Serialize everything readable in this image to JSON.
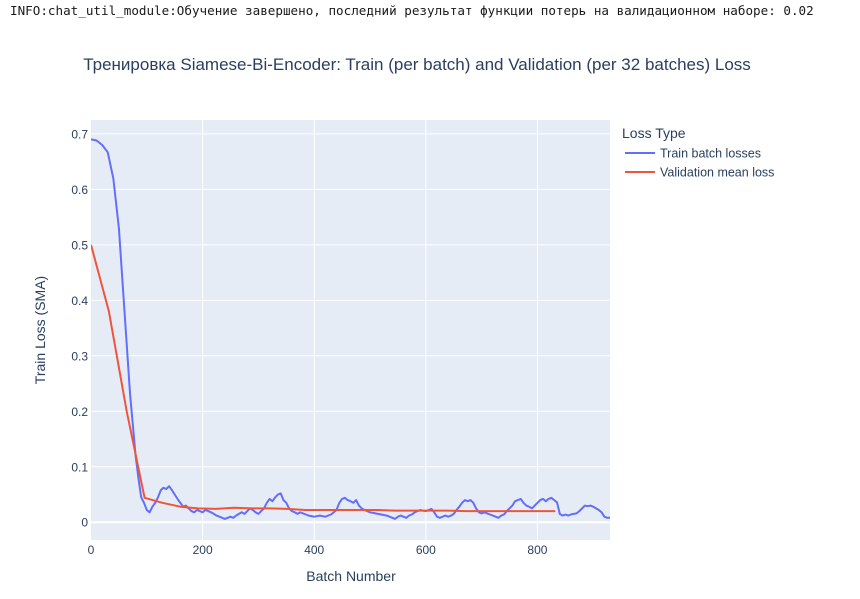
{
  "log_line": "INFO:chat_util_module:Обучение завершено, последний результат функции потерь на валидационном наборе: 0.02",
  "colors": {
    "plot_bg": "#E5ECF6",
    "grid": "#ffffff",
    "text": "#2a3f5f",
    "train": "#636EFA",
    "validation": "#EF553B"
  },
  "chart_data": {
    "type": "line",
    "title": "Тренировка Siamese-Bi-Encoder: Train (per batch) and Validation (per 32 batches) Loss",
    "xlabel": "Batch Number",
    "ylabel": "Train Loss (SMA)",
    "xlim": [
      0,
      930
    ],
    "ylim": [
      -0.032,
      0.725
    ],
    "xticks": [
      0,
      200,
      400,
      600,
      800
    ],
    "xtick_labels": [
      "0",
      "200",
      "400",
      "600",
      "800"
    ],
    "yticks": [
      0,
      0.1,
      0.2,
      0.3,
      0.4,
      0.5,
      0.6,
      0.7
    ],
    "ytick_labels": [
      "0",
      "0.1",
      "0.2",
      "0.3",
      "0.4",
      "0.5",
      "0.6",
      "0.7"
    ],
    "grid": true,
    "legend": {
      "title": "Loss Type",
      "position": "right"
    },
    "series": [
      {
        "name": "Train batch losses",
        "color": "#636EFA",
        "points": [
          [
            0,
            0.69
          ],
          [
            10,
            0.688
          ],
          [
            20,
            0.68
          ],
          [
            30,
            0.667
          ],
          [
            40,
            0.62
          ],
          [
            50,
            0.53
          ],
          [
            60,
            0.38
          ],
          [
            70,
            0.23
          ],
          [
            80,
            0.12
          ],
          [
            85,
            0.08
          ],
          [
            90,
            0.045
          ],
          [
            95,
            0.035
          ],
          [
            100,
            0.022
          ],
          [
            105,
            0.018
          ],
          [
            110,
            0.028
          ],
          [
            115,
            0.035
          ],
          [
            120,
            0.045
          ],
          [
            125,
            0.058
          ],
          [
            130,
            0.062
          ],
          [
            135,
            0.06
          ],
          [
            140,
            0.065
          ],
          [
            145,
            0.058
          ],
          [
            150,
            0.05
          ],
          [
            155,
            0.042
          ],
          [
            160,
            0.035
          ],
          [
            165,
            0.028
          ],
          [
            170,
            0.03
          ],
          [
            175,
            0.025
          ],
          [
            180,
            0.02
          ],
          [
            185,
            0.018
          ],
          [
            190,
            0.022
          ],
          [
            195,
            0.02
          ],
          [
            200,
            0.018
          ],
          [
            205,
            0.022
          ],
          [
            210,
            0.02
          ],
          [
            215,
            0.018
          ],
          [
            220,
            0.015
          ],
          [
            225,
            0.012
          ],
          [
            230,
            0.01
          ],
          [
            235,
            0.008
          ],
          [
            240,
            0.006
          ],
          [
            245,
            0.008
          ],
          [
            250,
            0.01
          ],
          [
            255,
            0.008
          ],
          [
            260,
            0.012
          ],
          [
            265,
            0.015
          ],
          [
            270,
            0.018
          ],
          [
            275,
            0.015
          ],
          [
            280,
            0.02
          ],
          [
            285,
            0.025
          ],
          [
            290,
            0.022
          ],
          [
            295,
            0.018
          ],
          [
            300,
            0.015
          ],
          [
            305,
            0.02
          ],
          [
            310,
            0.025
          ],
          [
            315,
            0.035
          ],
          [
            320,
            0.042
          ],
          [
            325,
            0.038
          ],
          [
            330,
            0.045
          ],
          [
            335,
            0.05
          ],
          [
            340,
            0.052
          ],
          [
            345,
            0.04
          ],
          [
            350,
            0.035
          ],
          [
            355,
            0.025
          ],
          [
            360,
            0.02
          ],
          [
            365,
            0.018
          ],
          [
            370,
            0.015
          ],
          [
            375,
            0.018
          ],
          [
            380,
            0.016
          ],
          [
            385,
            0.014
          ],
          [
            390,
            0.012
          ],
          [
            395,
            0.011
          ],
          [
            400,
            0.01
          ],
          [
            410,
            0.012
          ],
          [
            420,
            0.01
          ],
          [
            430,
            0.014
          ],
          [
            440,
            0.022
          ],
          [
            445,
            0.035
          ],
          [
            450,
            0.042
          ],
          [
            455,
            0.044
          ],
          [
            460,
            0.04
          ],
          [
            465,
            0.038
          ],
          [
            470,
            0.035
          ],
          [
            475,
            0.04
          ],
          [
            480,
            0.03
          ],
          [
            485,
            0.025
          ],
          [
            490,
            0.022
          ],
          [
            495,
            0.02
          ],
          [
            500,
            0.018
          ],
          [
            510,
            0.016
          ],
          [
            520,
            0.014
          ],
          [
            530,
            0.012
          ],
          [
            540,
            0.008
          ],
          [
            545,
            0.006
          ],
          [
            550,
            0.01
          ],
          [
            555,
            0.012
          ],
          [
            560,
            0.01
          ],
          [
            565,
            0.008
          ],
          [
            570,
            0.012
          ],
          [
            575,
            0.014
          ],
          [
            580,
            0.018
          ],
          [
            585,
            0.02
          ],
          [
            590,
            0.022
          ],
          [
            595,
            0.021
          ],
          [
            600,
            0.02
          ],
          [
            605,
            0.022
          ],
          [
            610,
            0.024
          ],
          [
            615,
            0.018
          ],
          [
            620,
            0.01
          ],
          [
            625,
            0.008
          ],
          [
            630,
            0.01
          ],
          [
            635,
            0.012
          ],
          [
            640,
            0.01
          ],
          [
            645,
            0.012
          ],
          [
            650,
            0.015
          ],
          [
            655,
            0.022
          ],
          [
            660,
            0.028
          ],
          [
            665,
            0.035
          ],
          [
            670,
            0.04
          ],
          [
            675,
            0.038
          ],
          [
            680,
            0.04
          ],
          [
            685,
            0.035
          ],
          [
            690,
            0.025
          ],
          [
            695,
            0.018
          ],
          [
            700,
            0.016
          ],
          [
            705,
            0.018
          ],
          [
            710,
            0.016
          ],
          [
            715,
            0.014
          ],
          [
            720,
            0.012
          ],
          [
            725,
            0.01
          ],
          [
            730,
            0.008
          ],
          [
            735,
            0.012
          ],
          [
            740,
            0.014
          ],
          [
            745,
            0.02
          ],
          [
            750,
            0.025
          ],
          [
            755,
            0.03
          ],
          [
            760,
            0.038
          ],
          [
            765,
            0.04
          ],
          [
            770,
            0.042
          ],
          [
            775,
            0.035
          ],
          [
            780,
            0.03
          ],
          [
            785,
            0.028
          ],
          [
            790,
            0.025
          ],
          [
            795,
            0.03
          ],
          [
            800,
            0.035
          ],
          [
            805,
            0.04
          ],
          [
            810,
            0.042
          ],
          [
            815,
            0.038
          ],
          [
            820,
            0.042
          ],
          [
            825,
            0.044
          ],
          [
            830,
            0.04
          ],
          [
            835,
            0.036
          ],
          [
            840,
            0.015
          ],
          [
            845,
            0.012
          ],
          [
            850,
            0.014
          ],
          [
            855,
            0.012
          ],
          [
            860,
            0.014
          ],
          [
            865,
            0.015
          ],
          [
            870,
            0.016
          ],
          [
            875,
            0.02
          ],
          [
            880,
            0.025
          ],
          [
            885,
            0.03
          ],
          [
            890,
            0.029
          ],
          [
            895,
            0.03
          ],
          [
            900,
            0.028
          ],
          [
            905,
            0.025
          ],
          [
            910,
            0.022
          ],
          [
            915,
            0.018
          ],
          [
            920,
            0.01
          ],
          [
            925,
            0.008
          ],
          [
            930,
            0.008
          ]
        ]
      },
      {
        "name": "Validation mean loss",
        "color": "#EF553B",
        "points": [
          [
            0,
            0.5
          ],
          [
            32,
            0.38
          ],
          [
            64,
            0.2
          ],
          [
            96,
            0.044
          ],
          [
            128,
            0.035
          ],
          [
            160,
            0.028
          ],
          [
            192,
            0.025
          ],
          [
            224,
            0.024
          ],
          [
            256,
            0.026
          ],
          [
            288,
            0.025
          ],
          [
            320,
            0.025
          ],
          [
            352,
            0.024
          ],
          [
            384,
            0.022
          ],
          [
            416,
            0.022
          ],
          [
            448,
            0.022
          ],
          [
            480,
            0.022
          ],
          [
            512,
            0.022
          ],
          [
            544,
            0.021
          ],
          [
            576,
            0.021
          ],
          [
            608,
            0.021
          ],
          [
            640,
            0.021
          ],
          [
            672,
            0.02
          ],
          [
            704,
            0.02
          ],
          [
            736,
            0.02
          ],
          [
            768,
            0.02
          ],
          [
            800,
            0.02
          ],
          [
            832,
            0.02
          ]
        ]
      }
    ]
  }
}
